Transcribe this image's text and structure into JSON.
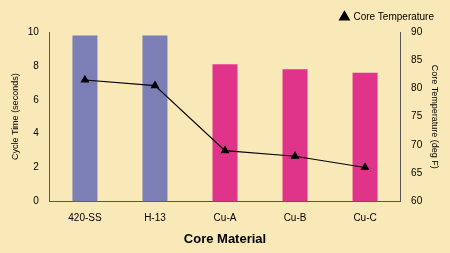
{
  "chart_data": {
    "type": "bar",
    "x_label": "Core Material",
    "y_label": "Cycle Time (seconds)",
    "y2_label": "Core Temperature (deg F)",
    "categories": [
      "420-SS",
      "H-13",
      "Cu-A",
      "Cu-B",
      "Cu-C"
    ],
    "series": [
      {
        "type": "bar",
        "colors": [
          "#7b7fb5",
          "#7b7fb5",
          "#e0348a",
          "#e0348a",
          "#e0348a"
        ],
        "values": [
          9.8,
          9.8,
          8.1,
          7.8,
          7.6
        ]
      },
      {
        "name": "Core Temperature",
        "type": "line",
        "color": "#000000",
        "marker": "triangle",
        "line_style": "solid",
        "axis": "y2",
        "values": [
          81.5,
          80.5,
          69,
          68,
          66
        ]
      }
    ],
    "ylim": [
      0,
      10
    ],
    "yticks": [
      0,
      2,
      4,
      6,
      8,
      10
    ],
    "y2lim": [
      60,
      90
    ],
    "y2ticks": [
      60,
      65,
      70,
      75,
      80,
      85,
      90
    ],
    "grid": false,
    "legend": "upper right"
  }
}
